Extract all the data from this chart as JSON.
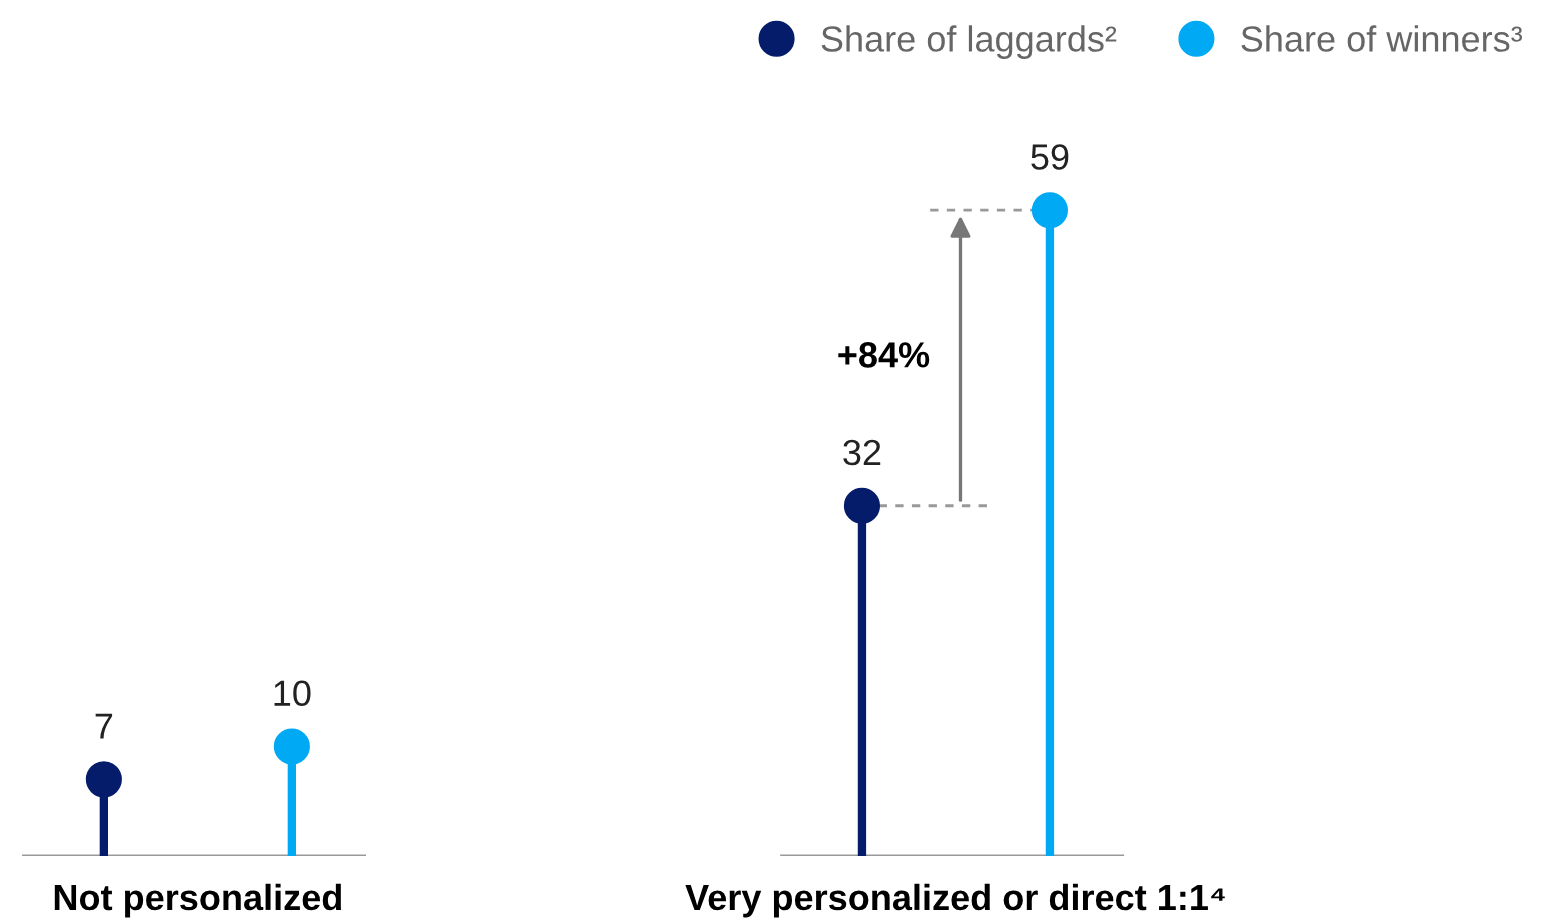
{
  "chart_data": {
    "type": "lollipop",
    "categories": [
      "Not personalized",
      "Very personalized or direct 1:1⁴"
    ],
    "series": [
      {
        "name": "Share of laggards²",
        "color": "#051c6b",
        "values": [
          7,
          32
        ]
      },
      {
        "name": "Share of winners³",
        "color": "#00a9f4",
        "values": [
          10,
          59
        ]
      }
    ],
    "data_labels": true,
    "legend": "top right",
    "marker": "circle",
    "annotations": [
      "+84%"
    ]
  }
}
